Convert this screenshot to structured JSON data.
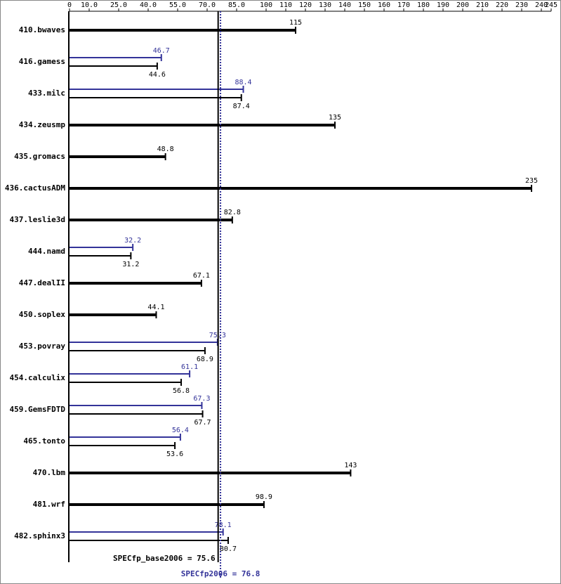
{
  "chart_data": {
    "type": "bar",
    "categories": [
      "410.bwaves",
      "416.gamess",
      "433.milc",
      "434.zeusmp",
      "435.gromacs",
      "436.cactusADM",
      "437.leslie3d",
      "444.namd",
      "447.dealII",
      "450.soplex",
      "453.povray",
      "454.calculix",
      "459.GemsFDTD",
      "465.tonto",
      "470.lbm",
      "481.wrf",
      "482.sphinx3"
    ],
    "series": [
      {
        "color": "#333399",
        "values": [
          null,
          46.7,
          88.4,
          null,
          null,
          null,
          null,
          32.2,
          null,
          null,
          75.3,
          61.1,
          67.3,
          56.4,
          null,
          null,
          78.1
        ]
      },
      {
        "color": "#000000",
        "values": [
          115,
          44.6,
          87.4,
          135,
          48.8,
          235,
          82.8,
          31.2,
          67.1,
          44.1,
          68.9,
          56.8,
          67.7,
          53.6,
          143,
          98.9,
          80.7
        ]
      }
    ],
    "xlim": [
      0,
      245
    ],
    "xticks": [
      0,
      {
        "value": 10,
        "label": "10.0"
      },
      {
        "value": 25,
        "label": "25.0"
      },
      {
        "value": 40,
        "label": "40.0"
      },
      {
        "value": 55,
        "label": "55.0"
      },
      {
        "value": 70,
        "label": "70.0"
      },
      {
        "value": 85,
        "label": "85.0"
      },
      100,
      110,
      120,
      130,
      140,
      150,
      160,
      170,
      180,
      190,
      200,
      210,
      220,
      230,
      240,
      245
    ],
    "reference_lines": [
      {
        "value": 75.6,
        "label": "SPECfp_base2006 = 75.6",
        "color": "#000000",
        "dashed": false
      },
      {
        "value": 76.8,
        "label": "SPECfp2006 = 76.8",
        "color": "#333399",
        "dashed": true
      }
    ]
  }
}
